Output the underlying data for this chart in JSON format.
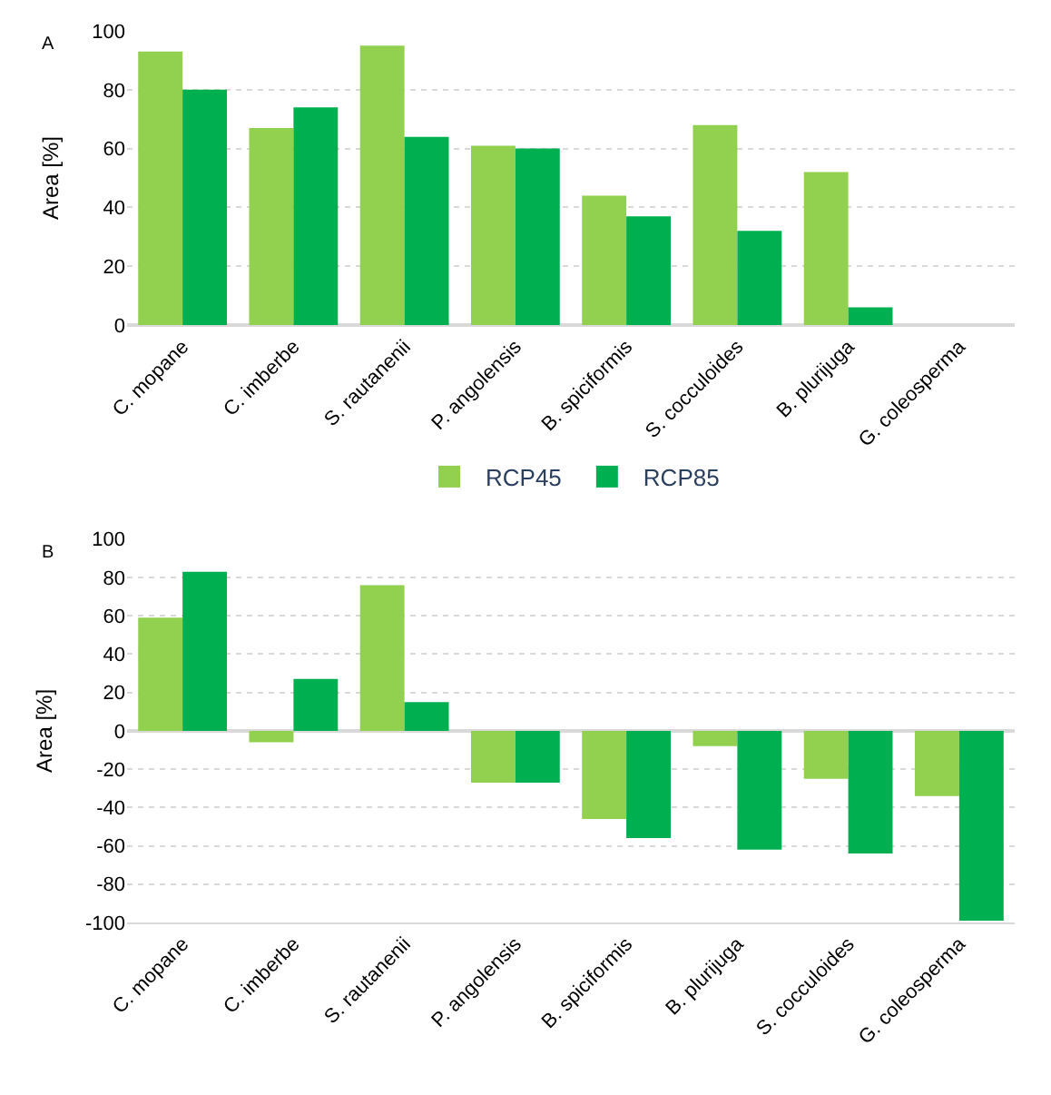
{
  "chart_data": [
    {
      "type": "bar",
      "ylabel": "Area [%]",
      "annotations": [
        "A"
      ],
      "categories": [
        "C. mopane",
        "C. imberbe",
        "S. rautanenii",
        "P. angolensis",
        "B. spiciformis",
        "S. cocculoides",
        "B. plurijuga",
        "G. coleosperma"
      ],
      "series": [
        {
          "name": "RCP45",
          "color": "#92d050",
          "values": [
            93,
            67,
            95,
            61,
            44,
            68,
            52,
            0
          ]
        },
        {
          "name": "RCP85",
          "color": "#00b050",
          "values": [
            80,
            74,
            64,
            60,
            37,
            32,
            6,
            0
          ]
        }
      ],
      "ylim": [
        0,
        100
      ],
      "yticks": [
        0,
        20,
        40,
        60,
        80,
        100
      ],
      "grid": "y",
      "legend": "bottom"
    },
    {
      "type": "bar",
      "ylabel": "Area [%]",
      "annotations": [
        "B"
      ],
      "categories": [
        "C. mopane",
        "C. imberbe",
        "S. rautanenii",
        "P. angolensis",
        "B. spiciformis",
        "B. plurijuga",
        "S. cocculoides",
        "G. coleosperma"
      ],
      "series": [
        {
          "color": "#92d050",
          "values": [
            59,
            -6,
            76,
            -27,
            -46,
            -8,
            -25,
            -34
          ]
        },
        {
          "color": "#00b050",
          "values": [
            83,
            27,
            15,
            -27,
            -56,
            -62,
            -64,
            -99
          ]
        }
      ],
      "ylim": [
        -100,
        100
      ],
      "yticks": [
        -100,
        -80,
        -60,
        -40,
        -20,
        0,
        20,
        40,
        60,
        80,
        100
      ],
      "grid": "y",
      "legend": false
    }
  ]
}
